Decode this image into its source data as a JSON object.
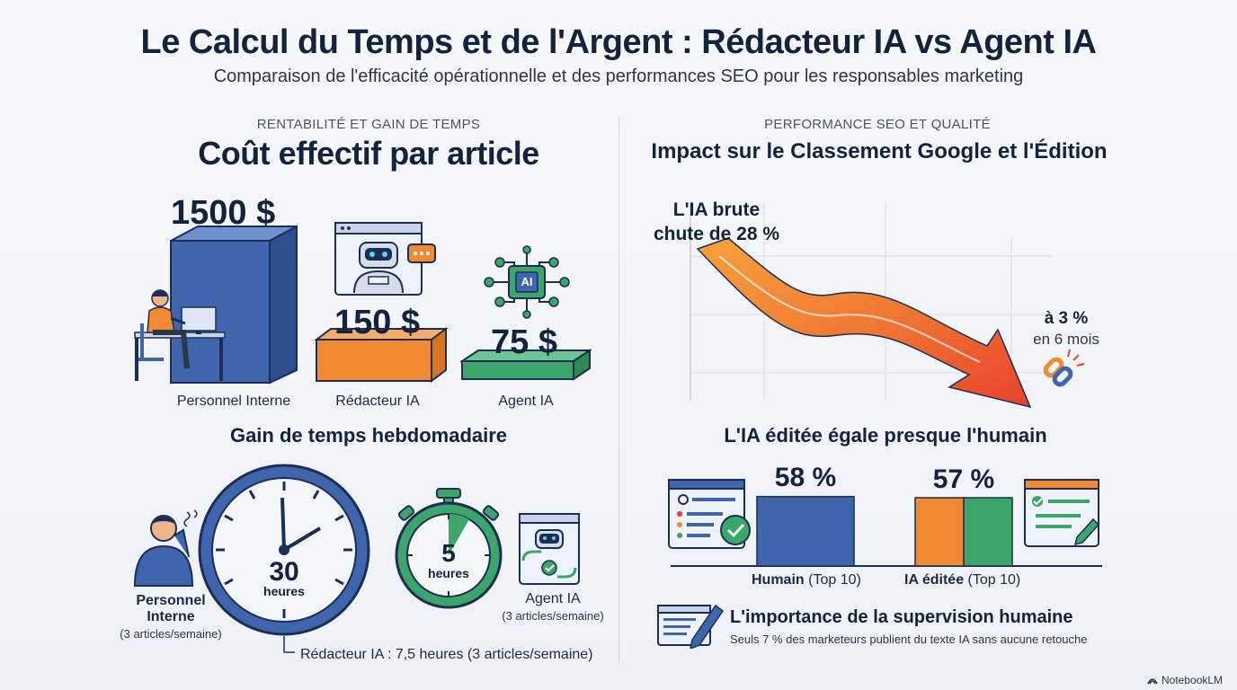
{
  "header": {
    "title": "Le Calcul du Temps et de l'Argent : Rédacteur IA vs Agent IA",
    "subtitle": "Comparaison de l'efficacité opérationnelle et des performances SEO pour les responsables marketing"
  },
  "left": {
    "section_label": "RENTABILITÉ ET GAIN DE TEMPS",
    "heading": "Coût effectif par article",
    "costs": [
      {
        "price": "1500 $",
        "label": "Personnel Interne",
        "value": 1500
      },
      {
        "price": "150 $",
        "label": "Rédacteur IA",
        "value": 150
      },
      {
        "price": "75 $",
        "label": "Agent IA",
        "value": 75
      }
    ],
    "chip_text": "AI",
    "time_heading": "Gain de temps hebdomadaire",
    "staff_clock": {
      "number": "30",
      "unit": "heures",
      "label": "Personnel Interne",
      "note": "(3 articles/semaine)"
    },
    "agent_timer": {
      "number": "5",
      "unit": "heures",
      "label": "Agent IA",
      "note": "(3 articles/semaine)"
    },
    "writer_note": "Rédacteur IA : 7,5 heures (3 articles/semaine)"
  },
  "right": {
    "section_label": "PERFORMANCE SEO ET QUALITÉ",
    "heading": "Impact sur le Classement Google et l'Édition",
    "drop_start": "L'IA brute\nchute de 28 %",
    "drop_end_value": "à 3 %",
    "drop_end_period": "en 6 mois",
    "drop_from": 28,
    "drop_to": 3,
    "compare_heading": "L'IA éditée égale presque l'humain",
    "bars": [
      {
        "value_label": "58 %",
        "value": 58,
        "name": "Humain",
        "note": "(Top 10)"
      },
      {
        "value_label": "57 %",
        "value": 57,
        "name": "IA éditée",
        "note": "(Top 10)"
      }
    ],
    "supervision_title": "L'importance de la supervision humaine",
    "supervision_text": "Seuls 7 % des marketeurs publient du texte IA sans aucune retouche"
  },
  "footer": {
    "brand": "NotebookLM"
  },
  "colors": {
    "navy": "#14233d",
    "blue": "#3f66ad",
    "orange": "#f08a33",
    "green": "#3ca56a",
    "red": "#e8412e"
  }
}
